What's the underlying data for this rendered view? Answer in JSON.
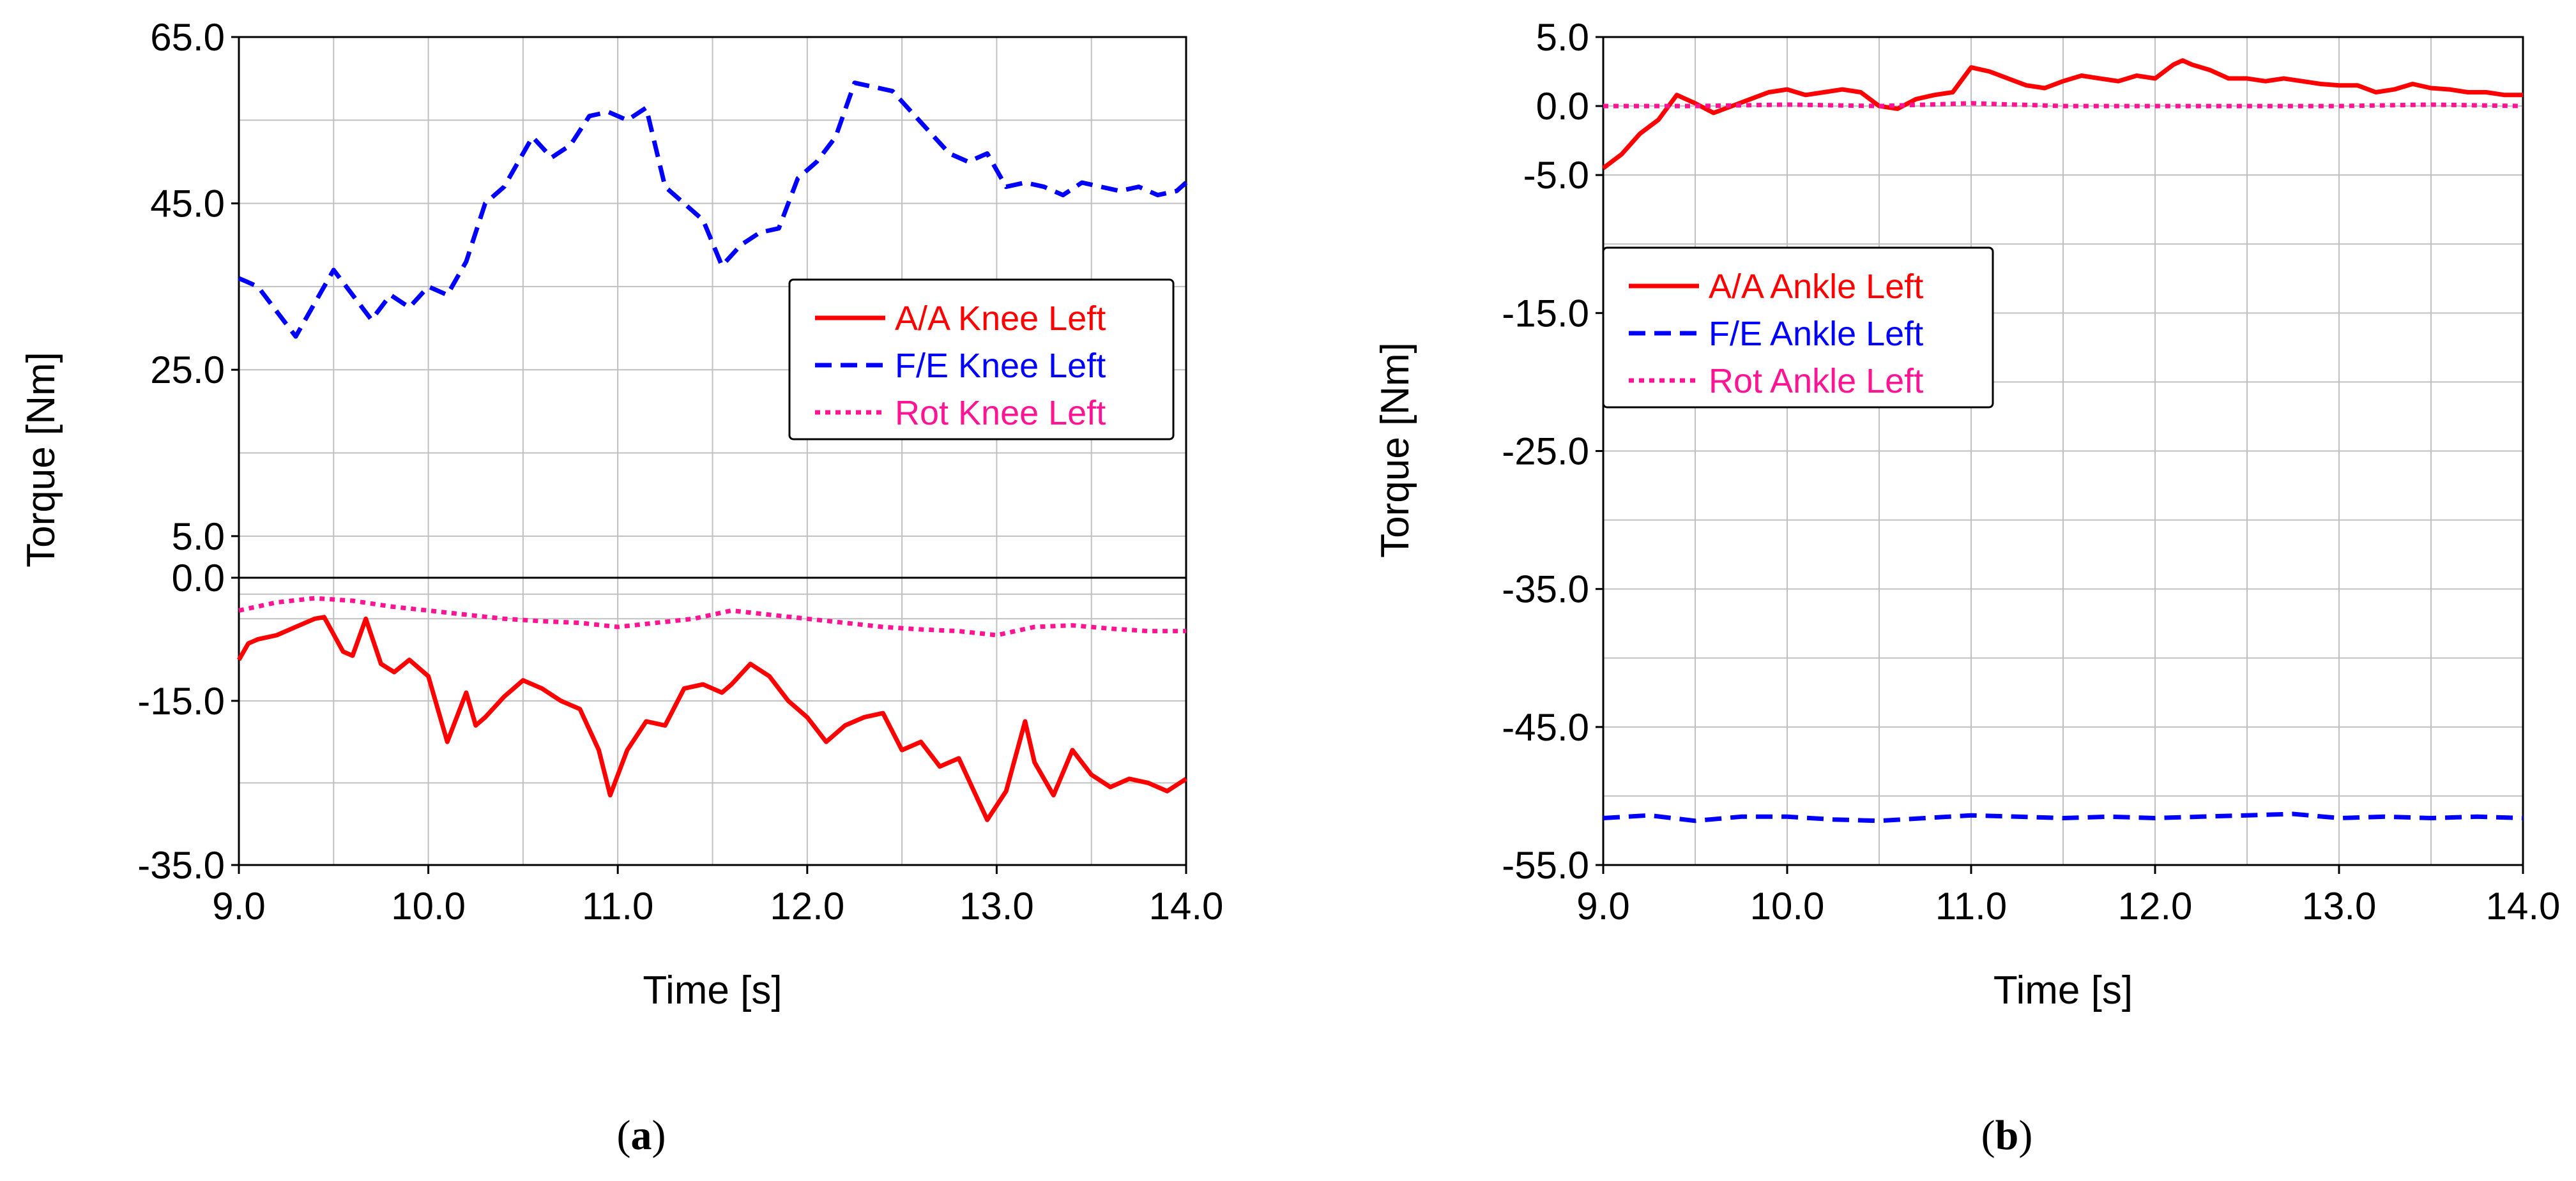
{
  "chart_data": [
    {
      "type": "line",
      "panel": "a",
      "caption": "(a)",
      "caption_open": "(",
      "caption_letter": "a",
      "caption_close": ")",
      "xlabel": "Time [s]",
      "ylabel": "Torque [Nm]",
      "xlim": [
        9.0,
        14.0
      ],
      "xticks": [
        9.0,
        10.0,
        11.0,
        12.0,
        13.0,
        14.0
      ],
      "xtick_labels": [
        "9.0",
        "10.0",
        "11.0",
        "12.0",
        "13.0",
        "14.0"
      ],
      "broken_y_axis": true,
      "upper_ylim": [
        0.0,
        65.0
      ],
      "upper_yticks": [
        5.0,
        25.0,
        45.0,
        65.0
      ],
      "upper_ytick_labels": [
        "5.0",
        "25.0",
        "45.0",
        "65.0"
      ],
      "lower_ylim": [
        -35.0,
        0.0
      ],
      "lower_yticks": [
        -35.0,
        -15.0,
        0.0
      ],
      "lower_ytick_labels": [
        "-35.0",
        "-15.0",
        "0.0"
      ],
      "grid": true,
      "legend_position": "right-middle",
      "series": [
        {
          "name": "A/A Knee Left",
          "color": "#ff0000",
          "dash": "solid",
          "x": [
            9.0,
            9.05,
            9.1,
            9.2,
            9.3,
            9.4,
            9.45,
            9.55,
            9.6,
            9.67,
            9.75,
            9.82,
            9.9,
            10.0,
            10.1,
            10.2,
            10.25,
            10.3,
            10.4,
            10.5,
            10.6,
            10.7,
            10.8,
            10.9,
            10.96,
            11.05,
            11.15,
            11.25,
            11.35,
            11.45,
            11.55,
            11.6,
            11.7,
            11.8,
            11.9,
            12.0,
            12.1,
            12.2,
            12.3,
            12.4,
            12.5,
            12.6,
            12.7,
            12.8,
            12.9,
            12.95,
            13.05,
            13.15,
            13.2,
            13.3,
            13.4,
            13.5,
            13.6,
            13.7,
            13.8,
            13.9,
            14.0
          ],
          "values": [
            -10.0,
            -8.0,
            -7.5,
            -7.0,
            -6.0,
            -5.0,
            -4.8,
            -9.0,
            -9.5,
            -5.0,
            -10.5,
            -11.5,
            -10.0,
            -12.0,
            -20.0,
            -14.0,
            -18.0,
            -17.0,
            -14.5,
            -12.5,
            -13.5,
            -15.0,
            -16.0,
            -21.0,
            -26.5,
            -21.0,
            -17.5,
            -18.0,
            -13.5,
            -13.0,
            -14.0,
            -13.0,
            -10.5,
            -12.0,
            -15.0,
            -17.0,
            -20.0,
            -18.0,
            -17.0,
            -16.5,
            -21.0,
            -20.0,
            -23.0,
            -22.0,
            -27.0,
            -29.5,
            -26.0,
            -17.5,
            -22.5,
            -26.5,
            -21.0,
            -24.0,
            -25.5,
            -24.5,
            -25.0,
            -26.0,
            -24.5
          ]
        },
        {
          "name": "F/E Knee Left",
          "color": "#0000ff",
          "dash": "dashed",
          "x": [
            9.0,
            9.1,
            9.2,
            9.3,
            9.4,
            9.5,
            9.6,
            9.7,
            9.8,
            9.9,
            10.0,
            10.1,
            10.2,
            10.3,
            10.4,
            10.5,
            10.55,
            10.65,
            10.75,
            10.85,
            10.95,
            11.05,
            11.15,
            11.25,
            11.35,
            11.45,
            11.55,
            11.65,
            11.75,
            11.85,
            11.95,
            12.05,
            12.15,
            12.25,
            12.35,
            12.45,
            12.55,
            12.65,
            12.75,
            12.85,
            12.95,
            13.05,
            13.15,
            13.25,
            13.35,
            13.45,
            13.55,
            13.65,
            13.75,
            13.85,
            13.95,
            14.0
          ],
          "values": [
            36.0,
            35.0,
            32.0,
            29.0,
            33.0,
            37.0,
            34.0,
            31.0,
            34.0,
            32.5,
            35.0,
            34.0,
            38.0,
            45.0,
            47.0,
            51.0,
            53.0,
            50.5,
            52.0,
            55.5,
            56.0,
            55.0,
            56.5,
            47.0,
            45.0,
            43.0,
            37.5,
            40.0,
            41.5,
            42.0,
            48.0,
            50.0,
            53.0,
            59.5,
            59.0,
            58.5,
            56.0,
            53.5,
            51.0,
            50.0,
            51.0,
            47.0,
            47.5,
            47.0,
            46.0,
            47.5,
            47.0,
            46.5,
            47.0,
            46.0,
            46.5,
            47.5
          ]
        },
        {
          "name": "Rot Knee Left",
          "color": "#ff1493",
          "dash": "dotted",
          "x": [
            9.0,
            9.2,
            9.4,
            9.6,
            9.8,
            10.0,
            10.2,
            10.4,
            10.6,
            10.8,
            11.0,
            11.2,
            11.4,
            11.6,
            11.8,
            12.0,
            12.2,
            12.4,
            12.6,
            12.8,
            13.0,
            13.2,
            13.4,
            13.6,
            13.8,
            14.0
          ],
          "values": [
            -4.0,
            -3.0,
            -2.5,
            -2.8,
            -3.5,
            -4.0,
            -4.5,
            -5.0,
            -5.3,
            -5.5,
            -6.0,
            -5.5,
            -5.0,
            -4.0,
            -4.5,
            -5.0,
            -5.5,
            -6.0,
            -6.3,
            -6.5,
            -7.0,
            -6.0,
            -5.8,
            -6.2,
            -6.5,
            -6.5
          ]
        }
      ],
      "axis_color": "#000000",
      "grid_color": "#c0c0c0"
    },
    {
      "type": "line",
      "panel": "b",
      "caption": "(b)",
      "caption_open": "(",
      "caption_letter": "b",
      "caption_close": ")",
      "xlabel": "Time [s]",
      "ylabel": "Torque [Nm]",
      "xlim": [
        9.0,
        14.0
      ],
      "xticks": [
        9.0,
        10.0,
        11.0,
        12.0,
        13.0,
        14.0
      ],
      "xtick_labels": [
        "9.0",
        "10.0",
        "11.0",
        "12.0",
        "13.0",
        "14.0"
      ],
      "ylim": [
        -55.0,
        5.0
      ],
      "yticks": [
        -55.0,
        -45.0,
        -35.0,
        -25.0,
        -15.0,
        -5.0,
        0.0,
        5.0
      ],
      "ytick_labels": [
        "-55.0",
        "-45.0",
        "-35.0",
        "-25.0",
        "-15.0",
        "-5.0",
        "0.0",
        "5.0"
      ],
      "grid": true,
      "legend_position": "upper-left",
      "series": [
        {
          "name": "A/A Ankle Left",
          "color": "#ff0000",
          "dash": "solid",
          "x": [
            9.0,
            9.1,
            9.2,
            9.3,
            9.4,
            9.5,
            9.6,
            9.7,
            9.8,
            9.9,
            10.0,
            10.1,
            10.2,
            10.3,
            10.4,
            10.5,
            10.6,
            10.7,
            10.8,
            10.9,
            11.0,
            11.1,
            11.2,
            11.3,
            11.4,
            11.5,
            11.6,
            11.7,
            11.8,
            11.9,
            12.0,
            12.1,
            12.15,
            12.2,
            12.3,
            12.4,
            12.5,
            12.6,
            12.7,
            12.8,
            12.9,
            13.0,
            13.1,
            13.2,
            13.3,
            13.4,
            13.5,
            13.6,
            13.7,
            13.8,
            13.9,
            14.0
          ],
          "values": [
            -4.5,
            -3.5,
            -2.0,
            -1.0,
            0.8,
            0.2,
            -0.5,
            0.0,
            0.5,
            1.0,
            1.2,
            0.8,
            1.0,
            1.2,
            1.0,
            0.0,
            -0.2,
            0.5,
            0.8,
            1.0,
            2.8,
            2.5,
            2.0,
            1.5,
            1.3,
            1.8,
            2.2,
            2.0,
            1.8,
            2.2,
            2.0,
            3.0,
            3.3,
            3.0,
            2.6,
            2.0,
            2.0,
            1.8,
            2.0,
            1.8,
            1.6,
            1.5,
            1.5,
            1.0,
            1.2,
            1.6,
            1.3,
            1.2,
            1.0,
            1.0,
            0.8,
            0.8
          ]
        },
        {
          "name": "F/E Ankle Left",
          "color": "#0000ff",
          "dash": "dashed",
          "x": [
            9.0,
            9.25,
            9.5,
            9.75,
            10.0,
            10.25,
            10.5,
            10.75,
            11.0,
            11.25,
            11.5,
            11.75,
            12.0,
            12.25,
            12.5,
            12.75,
            13.0,
            13.25,
            13.5,
            13.75,
            14.0
          ],
          "values": [
            -51.6,
            -51.4,
            -51.8,
            -51.5,
            -51.5,
            -51.7,
            -51.8,
            -51.6,
            -51.4,
            -51.5,
            -51.6,
            -51.5,
            -51.6,
            -51.5,
            -51.4,
            -51.3,
            -51.6,
            -51.5,
            -51.6,
            -51.5,
            -51.6
          ]
        },
        {
          "name": "Rot Ankle Left",
          "color": "#ff1493",
          "dash": "dotted",
          "x": [
            9.0,
            9.5,
            10.0,
            10.5,
            11.0,
            11.5,
            12.0,
            12.5,
            13.0,
            13.5,
            14.0
          ],
          "values": [
            0.0,
            0.0,
            0.1,
            0.0,
            0.2,
            0.0,
            0.0,
            0.0,
            0.0,
            0.1,
            0.0
          ]
        }
      ],
      "axis_color": "#000000",
      "grid_color": "#c0c0c0"
    }
  ]
}
